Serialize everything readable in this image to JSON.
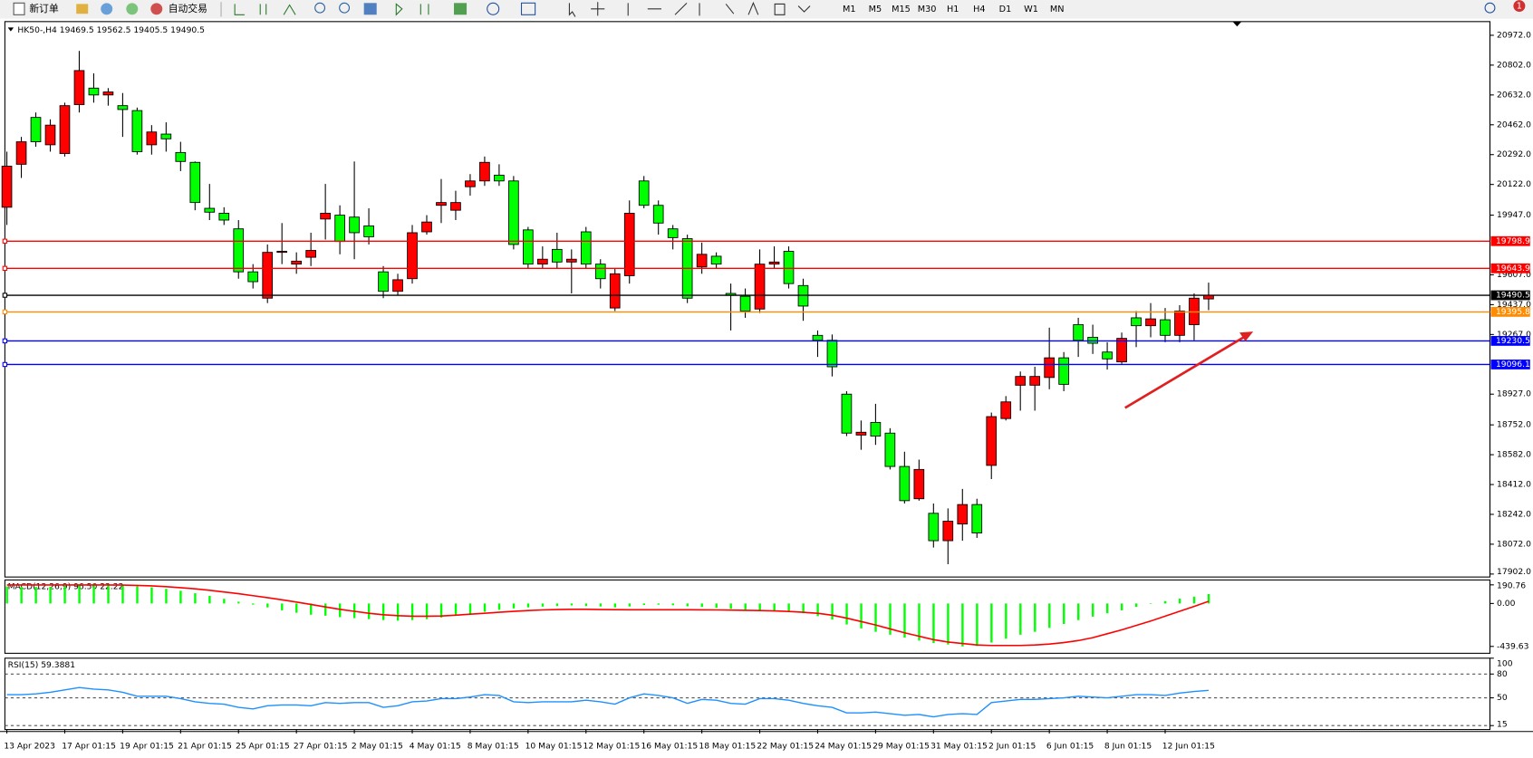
{
  "toolbar": {
    "new_order": "新订单",
    "auto_trading": "自动交易",
    "timeframes": [
      "M1",
      "M5",
      "M15",
      "M30",
      "H1",
      "H4",
      "D1",
      "W1",
      "MN"
    ],
    "notifications": "1"
  },
  "chart_data": [
    {
      "type": "candlestick",
      "title": "HK50-,H4  19469.5 19562.5 19405.5 19490.5",
      "up_color": "#ff0000",
      "down_color": "#00ff00",
      "categories": [
        "13 Apr 2023",
        null,
        null,
        null,
        "17 Apr 01:15",
        null,
        null,
        null,
        "19 Apr 01:15",
        null,
        null,
        null,
        "21 Apr 01:15",
        null,
        null,
        null,
        "25 Apr 01:15",
        null,
        null,
        null,
        "27 Apr 01:15",
        null,
        null,
        null,
        "2 May 01:15",
        null,
        null,
        null,
        "4 May 01:15",
        null,
        null,
        null,
        "8 May 01:15",
        null,
        null,
        null,
        "10 May 01:15",
        null,
        null,
        null,
        "12 May 01:15",
        null,
        null,
        null,
        "16 May 01:15",
        null,
        null,
        null,
        "18 May 01:15",
        null,
        null,
        null,
        "22 May 01:15",
        null,
        null,
        null,
        "24 May 01:15",
        null,
        null,
        null,
        "29 May 01:15",
        null,
        null,
        null,
        "31 May 01:15",
        null,
        null,
        null,
        "2 Jun 01:15",
        null,
        null,
        null,
        "6 Jun 01:15",
        null,
        null,
        null,
        "8 Jun 01:15",
        null,
        null,
        null,
        "12 Jun 01:15",
        null,
        null,
        null
      ],
      "open": [
        19992,
        20237,
        20504,
        20348,
        20298,
        20577,
        20671,
        20632,
        20571,
        20543,
        20348,
        20409,
        20304,
        20248,
        19986,
        19958,
        19869,
        19624,
        19474,
        19735,
        19668,
        19707,
        19925,
        19947,
        19936,
        19886,
        19624,
        19513,
        19585,
        19852,
        20003,
        19975,
        20109,
        20142,
        20175,
        20142,
        19863,
        19668,
        19752,
        19680,
        19852,
        19668,
        19418,
        19602,
        20142,
        20003,
        19869,
        19813,
        19652,
        19713,
        19501,
        19485,
        19412,
        19668,
        19741,
        19546,
        19262,
        19234,
        18927,
        18694,
        18766,
        18705,
        18515,
        18331,
        18248,
        18092,
        18187,
        18298,
        18521,
        18788,
        18978,
        18978,
        19022,
        19134,
        19323,
        19251,
        19167,
        19111,
        19362,
        19317,
        19351,
        19262,
        19323,
        19469.5
      ],
      "high": [
        20309,
        20393,
        20532,
        20493,
        20588,
        20883,
        20755,
        20671,
        20643,
        20560,
        20460,
        20476,
        20365,
        20253,
        20125,
        19992,
        19919,
        19668,
        19780,
        19902,
        19735,
        19847,
        20125,
        20003,
        20253,
        19986,
        19657,
        19613,
        19891,
        19947,
        20153,
        20086,
        20181,
        20281,
        20237,
        20170,
        19880,
        19769,
        19847,
        19752,
        19880,
        19696,
        19641,
        20031,
        20170,
        20031,
        19891,
        19836,
        19791,
        19735,
        19557,
        19529,
        19752,
        19769,
        19769,
        19585,
        19290,
        19267,
        18944,
        18777,
        18872,
        18733,
        18599,
        18554,
        18304,
        18276,
        18387,
        18331,
        18822,
        18916,
        19056,
        19083,
        19306,
        19167,
        19362,
        19323,
        19223,
        19278,
        19401,
        19446,
        19418,
        19434,
        19501,
        19562.5
      ],
      "low": [
        19891,
        20159,
        20337,
        20309,
        20281,
        20532,
        20588,
        20571,
        20393,
        20292,
        20292,
        20309,
        20198,
        19975,
        19919,
        19891,
        19585,
        19529,
        19446,
        19668,
        19613,
        19657,
        19808,
        19724,
        19696,
        19780,
        19474,
        19490,
        19557,
        19836,
        19902,
        19919,
        20058,
        20114,
        20114,
        19752,
        19641,
        19641,
        19641,
        19501,
        19641,
        19529,
        19401,
        19557,
        19986,
        19836,
        19752,
        19446,
        19613,
        19641,
        19290,
        19362,
        19390,
        19641,
        19529,
        19345,
        19139,
        19028,
        18688,
        18610,
        18638,
        18498,
        18304,
        18320,
        18053,
        17958,
        18092,
        18108,
        18443,
        18777,
        18833,
        18833,
        18955,
        18944,
        19139,
        19156,
        19067,
        19100,
        19195,
        19251,
        19223,
        19223,
        19234,
        19405.5
      ],
      "close": [
        20226,
        20365,
        20365,
        20460,
        20571,
        20771,
        20632,
        20649,
        20549,
        20309,
        20421,
        20382,
        20253,
        20019,
        19964,
        19919,
        19624,
        19568,
        19735,
        19741,
        19685,
        19746,
        19958,
        19797,
        19847,
        19824,
        19513,
        19579,
        19847,
        19908,
        20019,
        20019,
        20142,
        20248,
        20142,
        19780,
        19668,
        19696,
        19680,
        19696,
        19668,
        19585,
        19613,
        19958,
        20003,
        19902,
        19819,
        19474,
        19724,
        19668,
        19490,
        19401,
        19668,
        19680,
        19557,
        19429,
        19234,
        19083,
        18705,
        18710,
        18688,
        18515,
        18320,
        18498,
        18092,
        18203,
        18298,
        18136,
        18799,
        18883,
        19028,
        19028,
        19134,
        18983,
        19234,
        19217,
        19128,
        19245,
        19317,
        19356,
        19262,
        19401,
        19474,
        19490.5
      ],
      "ylim": [
        17885,
        21050
      ],
      "yticks": [
        {
          "value": 20972,
          "label": "20972.0"
        },
        {
          "value": 20802,
          "label": "20802.0"
        },
        {
          "value": 20632,
          "label": "20632.0"
        },
        {
          "value": 20462,
          "label": "20462.0"
        },
        {
          "value": 20292,
          "label": "20292.0"
        },
        {
          "value": 20122,
          "label": "20122.0"
        },
        {
          "value": 19947,
          "label": "19947.0"
        },
        {
          "value": 19607,
          "label": "19607.0"
        },
        {
          "value": 19437,
          "label": "19437.0"
        },
        {
          "value": 19267,
          "label": "19267.0"
        },
        {
          "value": 18927,
          "label": "18927.0"
        },
        {
          "value": 18752,
          "label": "18752.0"
        },
        {
          "value": 18582,
          "label": "18582.0"
        },
        {
          "value": 18412,
          "label": "18412.0"
        },
        {
          "value": 18242,
          "label": "18242.0"
        },
        {
          "value": 18072,
          "label": "18072.0"
        },
        {
          "value": 17902,
          "label": "17902.0"
        }
      ],
      "hlines": [
        {
          "value": 19798.9,
          "color": "#ff0000"
        },
        {
          "value": 19643.9,
          "color": "#ff0000"
        },
        {
          "value": 19490.5,
          "color": "#000000"
        },
        {
          "value": 19395.8,
          "color": "#ff8c00"
        },
        {
          "value": 19230.5,
          "color": "#0000ff"
        },
        {
          "value": 19096.1,
          "color": "#0000ff"
        }
      ]
    },
    {
      "type": "macd",
      "title": "MACD(12,26,9) 96.50 22.22",
      "histogram": {
        "color": "#00ff00",
        "values": [
          175,
          172,
          170,
          172,
          180,
          195,
          200,
          195,
          188,
          178,
          165,
          150,
          130,
          105,
          78,
          48,
          18,
          -12,
          -40,
          -70,
          -95,
          -115,
          -125,
          -140,
          -150,
          -160,
          -170,
          -175,
          -170,
          -160,
          -145,
          -125,
          -105,
          -85,
          -65,
          -50,
          -40,
          -32,
          -25,
          -20,
          -25,
          -30,
          -40,
          -30,
          -15,
          -12,
          -18,
          -28,
          -35,
          -45,
          -55,
          -65,
          -70,
          -75,
          -82,
          -100,
          -130,
          -165,
          -215,
          -255,
          -290,
          -320,
          -350,
          -380,
          -405,
          -420,
          -440,
          -435,
          -400,
          -360,
          -320,
          -290,
          -250,
          -210,
          -170,
          -135,
          -100,
          -70,
          -35,
          -5,
          25,
          50,
          70,
          96.5
        ]
      },
      "signal": {
        "color": "#ff0000",
        "values": [
          190,
          190,
          190,
          190,
          190,
          190,
          190,
          190,
          188,
          185,
          180,
          172,
          162,
          150,
          135,
          118,
          100,
          80,
          60,
          38,
          15,
          -10,
          -35,
          -60,
          -80,
          -100,
          -115,
          -125,
          -130,
          -130,
          -128,
          -120,
          -110,
          -100,
          -90,
          -80,
          -72,
          -66,
          -62,
          -60,
          -60,
          -62,
          -63,
          -64,
          -64,
          -64,
          -64,
          -64,
          -65,
          -66,
          -68,
          -70,
          -72,
          -76,
          -82,
          -90,
          -100,
          -120,
          -150,
          -185,
          -220,
          -260,
          -300,
          -335,
          -370,
          -395,
          -410,
          -425,
          -430,
          -430,
          -430,
          -425,
          -415,
          -400,
          -380,
          -350,
          -310,
          -270,
          -225,
          -180,
          -130,
          -80,
          -30,
          22.22
        ]
      },
      "ylim": [
        -510,
        241
      ],
      "yticks": [
        {
          "value": 190.76,
          "label": "190.76"
        },
        {
          "value": 0,
          "label": "0.00"
        },
        {
          "value": -439.63,
          "label": "-439.63"
        }
      ]
    },
    {
      "type": "line",
      "title": "RSI(15) 59.3881",
      "color": "#1e90ff",
      "values": [
        54,
        54,
        55,
        57,
        60,
        63,
        61,
        60,
        57,
        52,
        52,
        52,
        49,
        45,
        43,
        42,
        38,
        36,
        40,
        41,
        41,
        40,
        44,
        43,
        44,
        44,
        38,
        40,
        45,
        46,
        49,
        49,
        51,
        54,
        53,
        45,
        44,
        45,
        45,
        45,
        47,
        45,
        42,
        50,
        55,
        53,
        50,
        43,
        48,
        47,
        43,
        42,
        49,
        49,
        47,
        43,
        40,
        38,
        31,
        31,
        32,
        30,
        28,
        29,
        26,
        29,
        30,
        29,
        44,
        46,
        48,
        48,
        49,
        50,
        52,
        51,
        50,
        52,
        54,
        54,
        53,
        56,
        58,
        59.3881
      ],
      "ylim": [
        10,
        100
      ],
      "yticks": [
        100,
        80,
        50,
        15
      ]
    }
  ]
}
